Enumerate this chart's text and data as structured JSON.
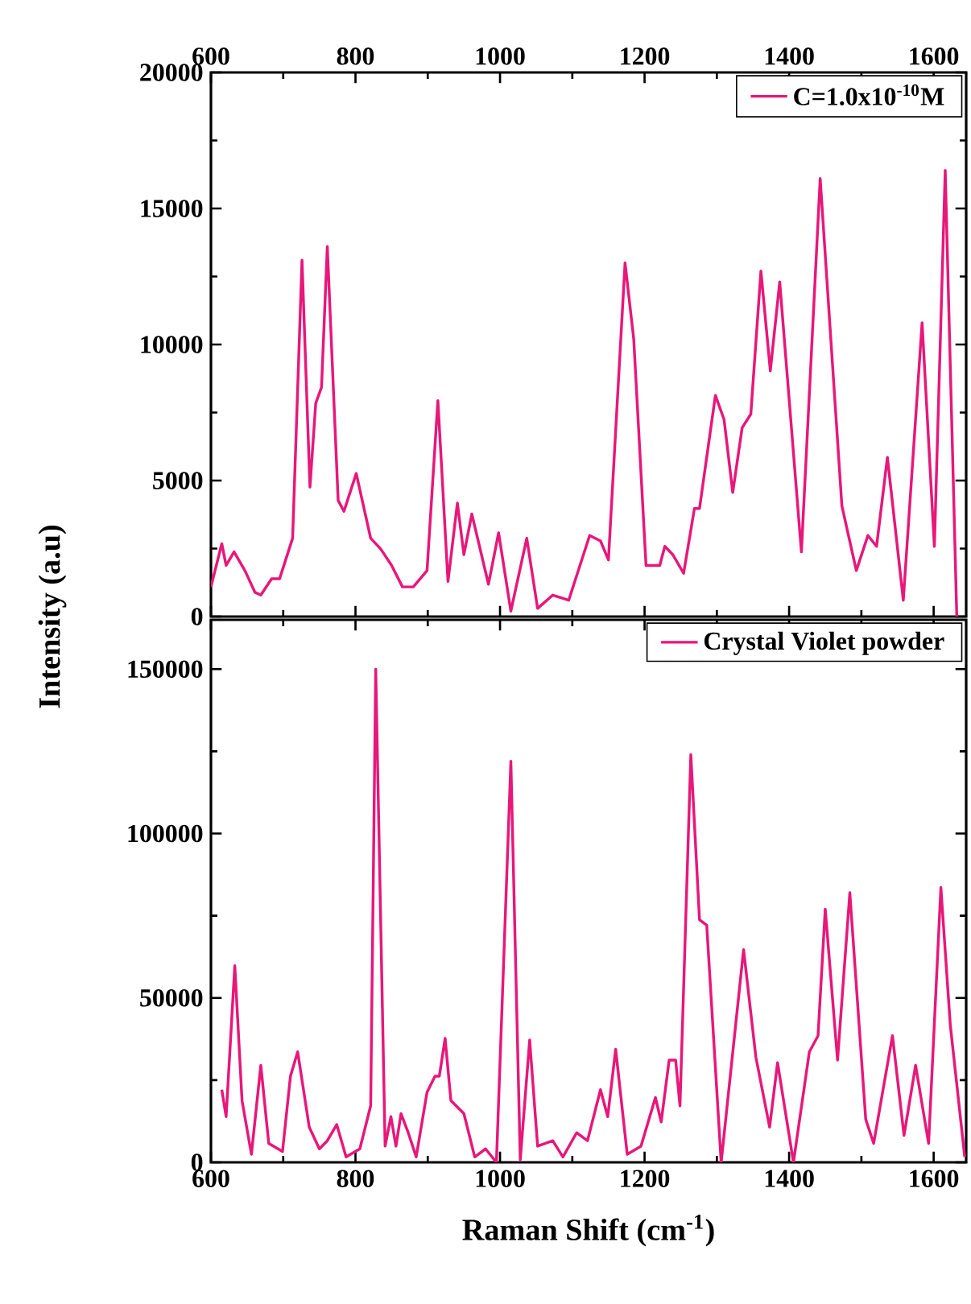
{
  "chart_data": [
    {
      "type": "line",
      "ylabel": "Intensity (a.u)",
      "xlim": [
        600,
        1645
      ],
      "xticks": [
        600,
        800,
        1000,
        1200,
        1400,
        1600
      ],
      "ylim": [
        0,
        20000
      ],
      "yticks": [
        0,
        5000,
        10000,
        15000,
        20000
      ],
      "legend": "top right",
      "grid": false,
      "series": [
        {
          "name": "C=1.0x10$^{-10}$M",
          "color": "#e8177a",
          "x": [
            600,
            615,
            621,
            632,
            647,
            661,
            669,
            684,
            695,
            713,
            726,
            737,
            745,
            753,
            761,
            776,
            784,
            801,
            821,
            835,
            850,
            865,
            880,
            899,
            914,
            928,
            941,
            950,
            961,
            984,
            998,
            1015,
            1037,
            1052,
            1073,
            1095,
            1124,
            1139,
            1150,
            1173,
            1185,
            1202,
            1221,
            1228,
            1239,
            1254,
            1269,
            1276,
            1298,
            1310,
            1322,
            1335,
            1347,
            1361,
            1374,
            1387,
            1417,
            1443,
            1473,
            1493,
            1509,
            1521,
            1536,
            1558,
            1584,
            1601,
            1616,
            1632
          ],
          "values": [
            1090,
            2680,
            1880,
            2380,
            1690,
            890,
            790,
            1390,
            1390,
            2880,
            13100,
            4760,
            7840,
            8430,
            13600,
            4270,
            3870,
            5260,
            2880,
            2480,
            1880,
            1090,
            1090,
            1690,
            7940,
            1290,
            4170,
            2280,
            3770,
            1190,
            3080,
            200,
            2880,
            300,
            790,
            600,
            2980,
            2780,
            2080,
            13000,
            10200,
            1880,
            1880,
            2580,
            2280,
            1590,
            3970,
            3970,
            8130,
            7240,
            4560,
            6940,
            7440,
            12700,
            9030,
            12300,
            2380,
            16100,
            4070,
            1690,
            2980,
            2580,
            5850,
            600,
            10800,
            2580,
            16400,
            0
          ]
        }
      ]
    },
    {
      "type": "line",
      "xlabel": "Raman Shift (cm$^{-1}$)",
      "xlim": [
        600,
        1645
      ],
      "xticks": [
        600,
        800,
        1000,
        1200,
        1400,
        1600
      ],
      "ylim": [
        0,
        165000
      ],
      "yticks": [
        0,
        50000,
        100000,
        150000
      ],
      "legend": "top right",
      "grid": false,
      "series": [
        {
          "name": "Crystal Violet powder",
          "color": "#e8177a",
          "x": [
            615,
            621,
            633,
            643,
            656,
            669,
            680,
            699,
            710,
            720,
            736,
            750,
            761,
            774,
            787,
            806,
            821,
            828,
            841,
            849,
            856,
            863,
            873,
            884,
            899,
            910,
            916,
            924,
            932,
            950,
            965,
            980,
            995,
            1015,
            1028,
            1041,
            1052,
            1073,
            1087,
            1106,
            1121,
            1139,
            1149,
            1160,
            1176,
            1195,
            1215,
            1223,
            1234,
            1243,
            1249,
            1264,
            1276,
            1286,
            1306,
            1337,
            1354,
            1373,
            1384,
            1406,
            1428,
            1440,
            1450,
            1467,
            1484,
            1506,
            1517,
            1543,
            1559,
            1575,
            1593,
            1610,
            1623,
            1643
          ],
          "values": [
            22100,
            13900,
            59800,
            18800,
            2460,
            29500,
            5740,
            3280,
            26200,
            33600,
            10700,
            4100,
            6560,
            11500,
            1640,
            4100,
            17200,
            150000,
            4920,
            13900,
            4920,
            14800,
            9000,
            1640,
            21300,
            26200,
            26200,
            37700,
            18800,
            14800,
            1640,
            4100,
            0,
            122000,
            820,
            37200,
            4920,
            6560,
            1640,
            9000,
            6560,
            22100,
            13900,
            34400,
            2460,
            4920,
            19700,
            12300,
            31100,
            31100,
            17200,
            124000,
            73800,
            72100,
            0,
            64700,
            32000,
            10700,
            30300,
            0,
            33600,
            38500,
            77000,
            31100,
            82000,
            13100,
            5740,
            38500,
            8200,
            29500,
            5740,
            83600,
            41800,
            1640
          ]
        }
      ]
    }
  ]
}
